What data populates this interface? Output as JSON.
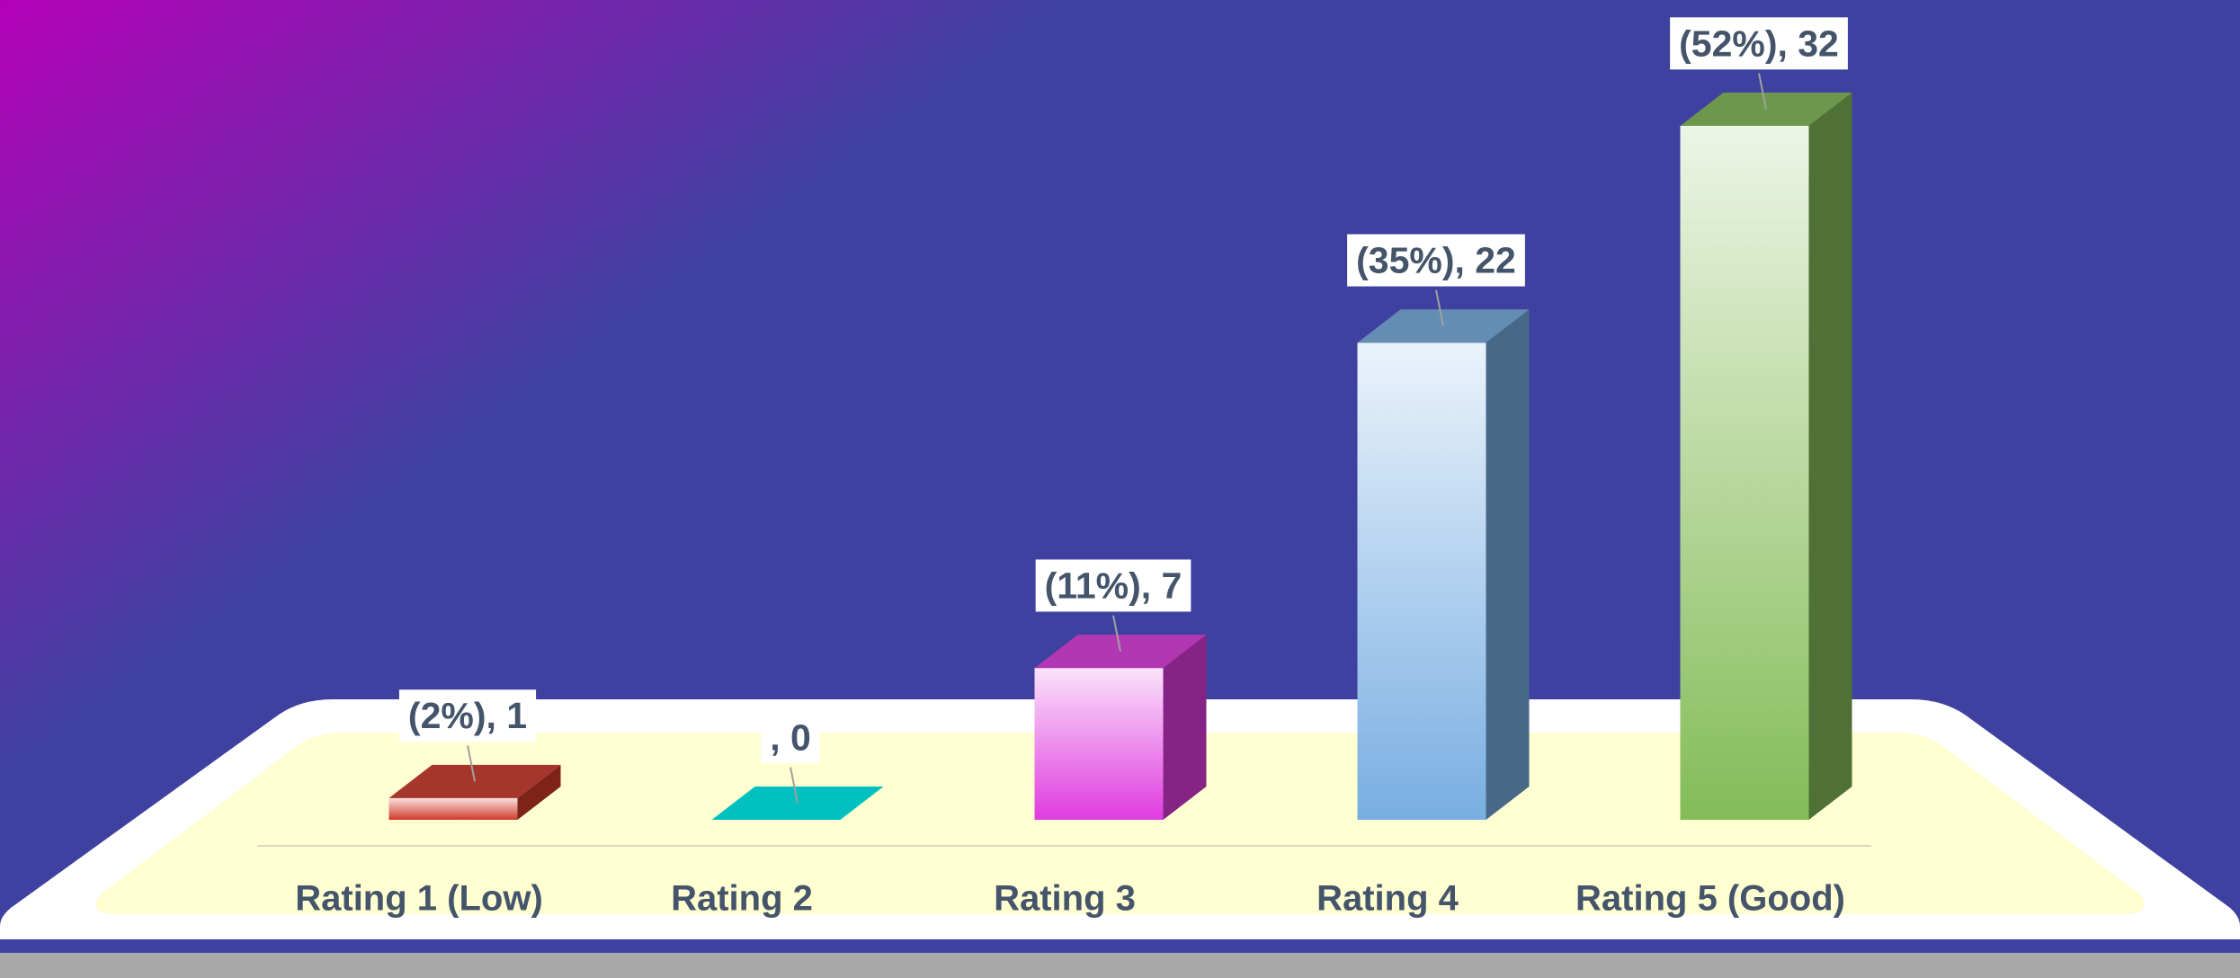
{
  "chart_data": {
    "type": "bar3d",
    "categories": [
      "Rating 1 (Low)",
      "Rating 2",
      "Rating 3",
      "Rating 4",
      "Rating 5 (Good)"
    ],
    "values": [
      1,
      0,
      7,
      22,
      32
    ],
    "value_labels": [
      "(2%), 1",
      ", 0",
      "(11%), 7",
      "(35%), 22",
      "(52%), 32"
    ],
    "colors": [
      "#d03a2c",
      "#00c0c0",
      "#e03ce0",
      "#78aee2",
      "#84bc58"
    ]
  }
}
